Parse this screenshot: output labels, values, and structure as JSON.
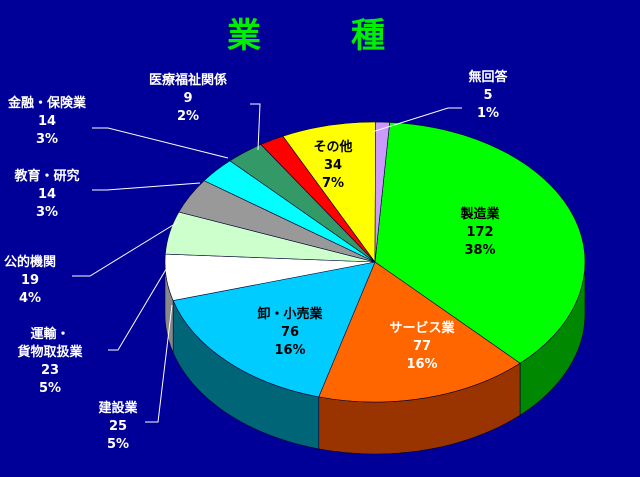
{
  "chart_data": {
    "type": "pie",
    "title": "業　種",
    "slices": [
      {
        "lines": [
          "製造業",
          "172",
          "38%"
        ],
        "value": 172,
        "percent": 38,
        "color": "#00ff00",
        "side": "#008800",
        "text_color": "#000000"
      },
      {
        "lines": [
          "サービス業",
          "77",
          "16%"
        ],
        "value": 77,
        "percent": 16,
        "color": "#ff6600",
        "side": "#993300",
        "text_color": "#ffffff"
      },
      {
        "lines": [
          "卸・小売業",
          "76",
          "16%"
        ],
        "value": 76,
        "percent": 16,
        "color": "#00ccff",
        "side": "#006677",
        "text_color": "#000000"
      },
      {
        "lines": [
          "建設業",
          "25",
          "5%"
        ],
        "value": 25,
        "percent": 5,
        "color": "#ffffff",
        "side": "#888888",
        "text_color": "#ffffff"
      },
      {
        "lines": [
          "運輸・",
          "貨物取扱業",
          "23",
          "5%"
        ],
        "value": 23,
        "percent": 5,
        "color": "#ccffcc",
        "side": "#779977",
        "text_color": "#ffffff"
      },
      {
        "lines": [
          "公的機関",
          "19",
          "4%"
        ],
        "value": 19,
        "percent": 4,
        "color": "#999999",
        "side": "#555555",
        "text_color": "#ffffff"
      },
      {
        "lines": [
          "教育・研究",
          "14",
          "3%"
        ],
        "value": 14,
        "percent": 3,
        "color": "#00ffff",
        "side": "#008888",
        "text_color": "#ffffff"
      },
      {
        "lines": [
          "金融・保険業",
          "14",
          "3%"
        ],
        "value": 14,
        "percent": 3,
        "color": "#339966",
        "side": "#1a4d33",
        "text_color": "#ffffff"
      },
      {
        "lines": [
          "医療福祉関係",
          "9",
          "2%"
        ],
        "value": 9,
        "percent": 2,
        "color": "#ff0000",
        "side": "#880000",
        "text_color": "#ffffff"
      },
      {
        "lines": [
          "その他",
          "34",
          "7%"
        ],
        "value": 34,
        "percent": 7,
        "color": "#ffff00",
        "side": "#888800",
        "text_color": "#000000"
      },
      {
        "lines": [
          "無回答",
          "5",
          "1%"
        ],
        "value": 5,
        "percent": 1,
        "color": "#cc99ff",
        "side": "#664488",
        "text_color": "#ffffff"
      }
    ]
  }
}
